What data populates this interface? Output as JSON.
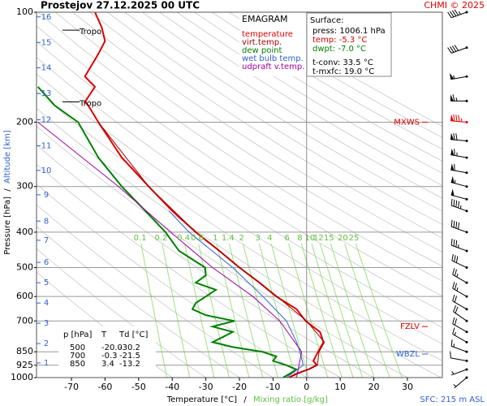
{
  "chart_data": {
    "type": "emagram",
    "title": "Prostejov   27.12.2025 00 UTC",
    "credit": "CHMI © 2025",
    "x_label": "Temperature [°C]",
    "x2_label": "Mixing ratio [g/kg]",
    "y_label": "Pressure [hPa]",
    "y2_label": "Altitude [km]",
    "axis_separator": "/",
    "footer": "SFC: 215 m ASL",
    "legend_title": "EMAGRAM",
    "xlim": [
      -80.4,
      40.4
    ],
    "ylim": [
      1000,
      100
    ],
    "log_y": true,
    "xticks": [
      -70,
      -60,
      -50,
      -40,
      -30,
      -20,
      -10,
      0,
      10,
      20,
      30
    ],
    "yticks": [
      100,
      200,
      300,
      400,
      500,
      600,
      700,
      850,
      925,
      1000
    ],
    "grid_y": [
      200,
      300,
      400,
      500,
      600,
      700,
      850,
      925
    ],
    "zero_isotherm": 0,
    "altitude_km": [
      1,
      2,
      3,
      4,
      5,
      6,
      7,
      8,
      9,
      10,
      11,
      12,
      13,
      14,
      15,
      16
    ],
    "altitude_hpa": [
      912,
      807,
      710,
      625,
      550,
      484,
      421,
      373,
      316,
      271,
      232,
      197,
      167,
      142,
      121,
      103
    ],
    "mixing_ratio": [
      {
        "value": 0.1,
        "label": "0.1"
      },
      {
        "value": 0.2,
        "label": "0.2"
      },
      {
        "value": 0.4,
        "label": "0.4"
      },
      {
        "value": 0.6,
        "label": "0.6"
      },
      1,
      {
        "value": 1.4,
        "label": "1.4"
      },
      2,
      3,
      4,
      6,
      8,
      10,
      12,
      15,
      20,
      25
    ],
    "mixing_label_hpa": 415,
    "series": [
      {
        "name": "temperature",
        "color": "#e00000",
        "pressure": [
          1000,
          975,
          950,
          925,
          900,
          850,
          800,
          750,
          700,
          650,
          600,
          550,
          500,
          450,
          400,
          350,
          300,
          250,
          200,
          180,
          176,
          160,
          150,
          130,
          120,
          110,
          100
        ],
        "temperature": [
          -5.3,
          -3,
          0.5,
          3,
          2,
          3.4,
          5,
          4,
          -0.3,
          -3,
          -9,
          -14,
          -20,
          -26,
          -33,
          -40,
          -47,
          -55,
          -62,
          -65,
          -66,
          -63,
          -66,
          -62,
          -60,
          -61,
          -63
        ]
      },
      {
        "name": "virt.temp.",
        "color": "#a00000",
        "pressure": [
          1000,
          925,
          850,
          800,
          700,
          600,
          500,
          400,
          300,
          200
        ],
        "temperature": [
          -5.2,
          3.2,
          3.7,
          5.3,
          0,
          -8.8,
          -19.9,
          -33,
          -47,
          -62
        ]
      },
      {
        "name": "dew point",
        "color": "#008000",
        "pressure": [
          1000,
          975,
          950,
          925,
          900,
          875,
          850,
          825,
          800,
          775,
          750,
          725,
          700,
          675,
          650,
          625,
          600,
          575,
          550,
          525,
          500,
          450,
          400,
          350,
          300,
          250,
          200,
          180,
          160
        ],
        "temperature": [
          -7,
          -5,
          -3,
          -6,
          -10,
          -9,
          -13.2,
          -22,
          -28,
          -25,
          -22,
          -28,
          -21.5,
          -30,
          -34,
          -33,
          -30,
          -27,
          -33,
          -30,
          -30.2,
          -38,
          -42,
          -48,
          -55,
          -62,
          -68,
          -75,
          -80
        ]
      },
      {
        "name": "wet bulb temp.",
        "color": "#3060d0",
        "pressure": [
          1000,
          925,
          850,
          800,
          700,
          600,
          500,
          400,
          350
        ],
        "temperature": [
          -6,
          -1,
          -2,
          -3,
          -6,
          -13,
          -22,
          -35,
          -41
        ]
      },
      {
        "name": "udpraft v.temp.",
        "color": "#a000a0",
        "pressure": [
          1000,
          850,
          700,
          600,
          500,
          400,
          300,
          200
        ],
        "temperature": [
          -3,
          -1.5,
          -8,
          -16,
          -28,
          -40.5,
          -56,
          -80
        ]
      }
    ],
    "surface": {
      "title": "Surface:",
      "lines": [
        {
          "text": "press: 1006.1 hPa",
          "color": "#000000"
        },
        {
          "text": "temp: -5.3 °C",
          "color": "#e00000"
        },
        {
          "text": "dwpt: -7.0 °C",
          "color": "#008000"
        },
        {
          "text": "t-conv: 33.5 °C",
          "color": "#000000"
        },
        {
          "text": "t-mxfc: 19.0 °C",
          "color": "#000000"
        }
      ]
    },
    "table": {
      "header": [
        "p [hPa]",
        "T",
        "Td [°C]"
      ],
      "rows": [
        [
          "500",
          "-20.0",
          "-30.2"
        ],
        [
          "700",
          "-0.3",
          "-21.5"
        ],
        [
          "850",
          "3.4",
          "-13.2"
        ]
      ]
    },
    "tropopause": [
      {
        "label": "Tropo",
        "pressure": 112
      },
      {
        "label": "Tropo",
        "pressure": 176
      }
    ],
    "levels": [
      {
        "label": "MXWS",
        "pressure": 200,
        "color": "#e00000"
      },
      {
        "label": "FZLV",
        "pressure": 725,
        "color": "#e00000"
      },
      {
        "label": "WBZL",
        "pressure": 862,
        "color": "#3060d0"
      }
    ],
    "wind_pressure": [
      100,
      125,
      150,
      175,
      200,
      225,
      250,
      275,
      300,
      325,
      350,
      400,
      450,
      500,
      550,
      600,
      650,
      700,
      750,
      800,
      850,
      900,
      950,
      1000
    ],
    "wind_direction": [
      250,
      250,
      260,
      270,
      275,
      275,
      280,
      280,
      285,
      285,
      290,
      290,
      290,
      295,
      300,
      300,
      300,
      305,
      300,
      300,
      290,
      280,
      250,
      230
    ],
    "wind_speed": [
      45,
      40,
      55,
      65,
      85,
      70,
      65,
      60,
      55,
      50,
      45,
      40,
      35,
      30,
      25,
      25,
      20,
      20,
      20,
      15,
      15,
      10,
      5,
      5
    ]
  }
}
